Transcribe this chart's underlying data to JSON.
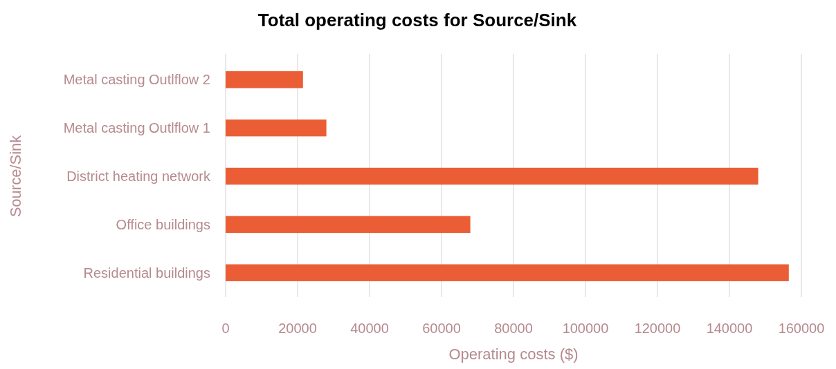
{
  "chart_data": {
    "type": "bar",
    "orientation": "horizontal",
    "title": "Total operating costs for Source/Sink",
    "xlabel": "Operating costs ($)",
    "ylabel": "Source/Sink",
    "categories": [
      "Metal casting Outlflow 2",
      "Metal casting Outlflow 1",
      "District heating network",
      "Office buildings",
      "Residential buildings"
    ],
    "values": [
      21500,
      28000,
      148000,
      68000,
      156500
    ],
    "color": "#eb5e35",
    "xlim": [
      0,
      160000
    ],
    "xticks": [
      0,
      20000,
      40000,
      60000,
      80000,
      100000,
      120000,
      140000,
      160000
    ],
    "grid": "x"
  }
}
